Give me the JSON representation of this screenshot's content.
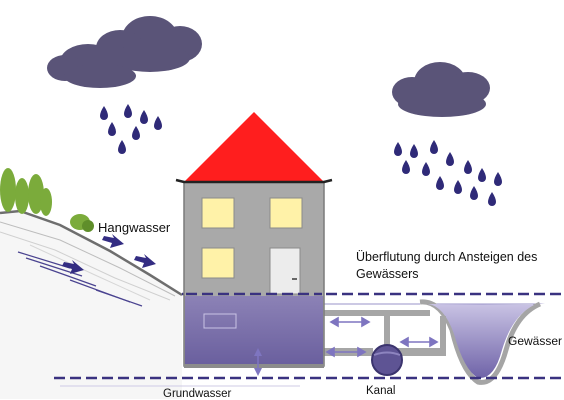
{
  "labels": {
    "hangwasser": "Hangwasser",
    "ueberflutung": "Überflutung durch Ansteigen des Gewässers",
    "gewaesser": "Gewässer",
    "kanal": "Kanal",
    "grundwasser": "Grundwasser"
  },
  "icons": {
    "rain_clouds": "rain-cloud-icon",
    "house": "house-icon",
    "sewer_pipe": "sewer-pipe-icon"
  },
  "colors": {
    "cloud": "#5a5478",
    "raindrop": "#2f2a78",
    "roof": "#ff1e1e",
    "house_wall": "#a9a9a9",
    "window": "#fff2a8",
    "water": "#8f86c0",
    "water_dashes": "#3a3280",
    "flow_arrow": "#332c82"
  }
}
